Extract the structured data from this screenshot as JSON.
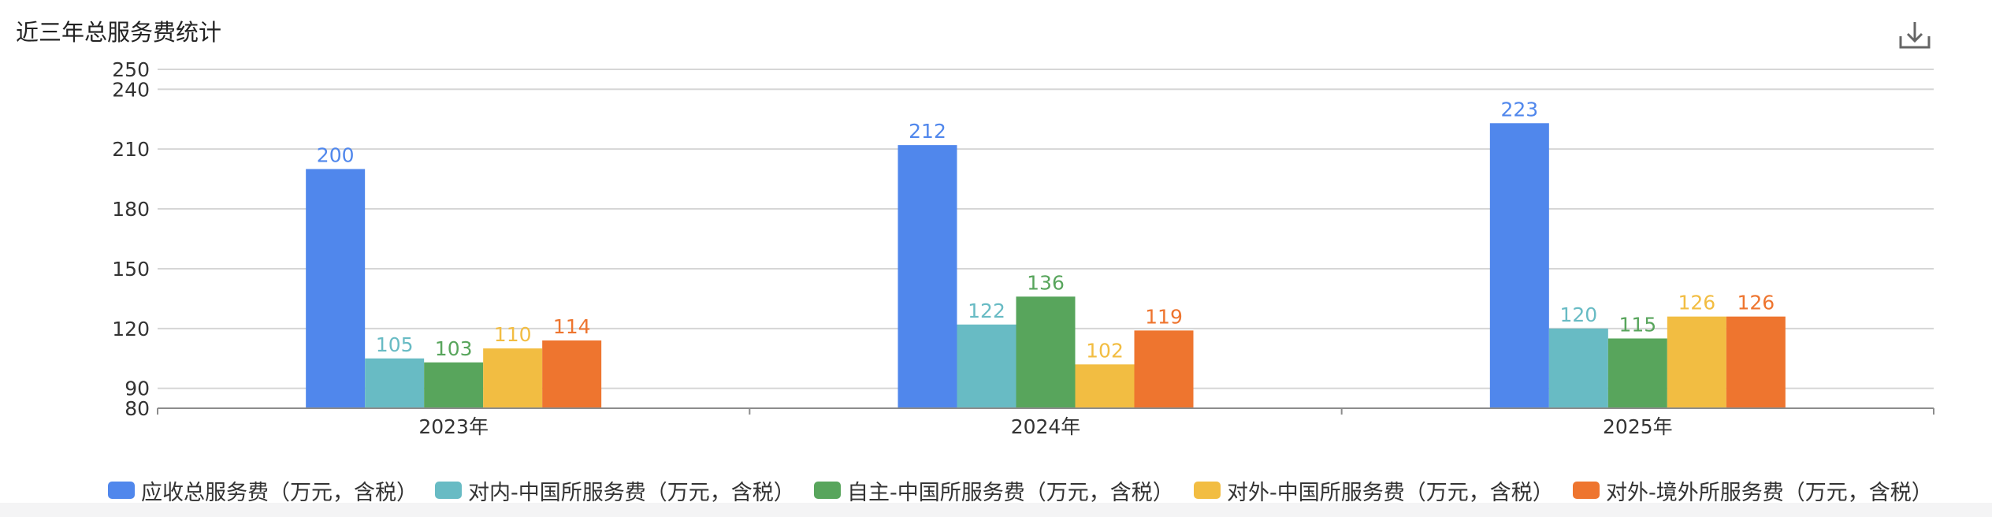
{
  "title": "近三年总服务费统计",
  "toolbar": {
    "download_icon": "download-icon"
  },
  "chart_data": {
    "type": "bar",
    "title": "近三年总服务费统计",
    "categories": [
      "2023年",
      "2024年",
      "2025年"
    ],
    "series": [
      {
        "name": "应收总服务费（万元，含税）",
        "color": "#5087ec",
        "values": [
          200,
          212,
          223
        ]
      },
      {
        "name": "对内-中国所服务费（万元，含税）",
        "color": "#68bbc4",
        "values": [
          105,
          122,
          120
        ]
      },
      {
        "name": "自主-中国所服务费（万元，含税）",
        "color": "#58a55c",
        "values": [
          103,
          136,
          115
        ]
      },
      {
        "name": "对外-中国所服务费（万元，含税）",
        "color": "#f2bd42",
        "values": [
          110,
          102,
          126
        ]
      },
      {
        "name": "对外-境外所服务费（万元，含税）",
        "color": "#ee752f",
        "values": [
          114,
          119,
          126
        ]
      }
    ],
    "yticks": [
      80,
      90,
      120,
      150,
      180,
      210,
      240,
      250
    ],
    "ylim": [
      80,
      250
    ],
    "grid": true,
    "legend_position": "bottom"
  }
}
